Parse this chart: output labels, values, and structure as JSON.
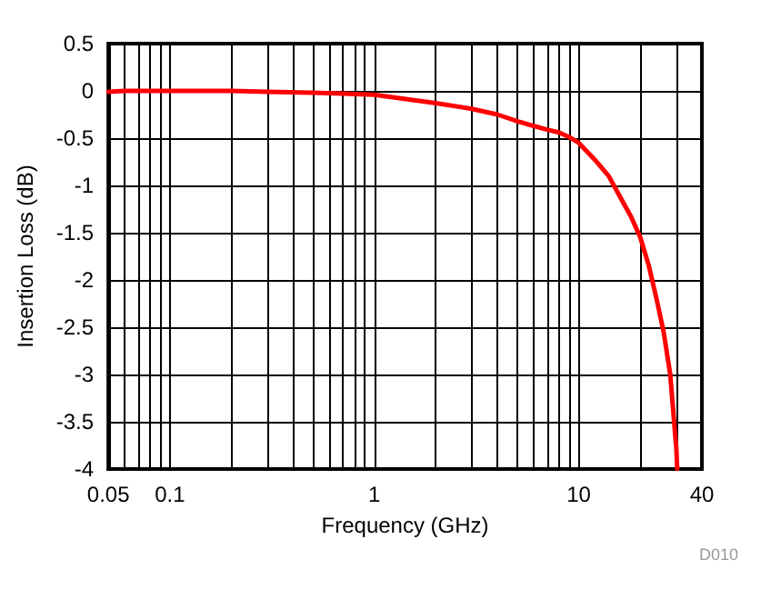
{
  "chart_data": {
    "type": "line",
    "xlabel": "Frequency (GHz)",
    "ylabel": "Insertion Loss (dB)",
    "annotations": [
      "D010"
    ],
    "log": "x",
    "grid": true,
    "marker": "none",
    "line_style": "solid",
    "xlim": [
      0.05,
      40
    ],
    "ylim": [
      -4,
      0.5
    ],
    "xticks": [
      0.05,
      {
        "value": 0.06,
        "label": null
      },
      {
        "value": 0.07,
        "label": null
      },
      {
        "value": 0.08,
        "label": null
      },
      {
        "value": 0.09,
        "label": null
      },
      0.1,
      {
        "value": 0.2,
        "label": null
      },
      {
        "value": 0.3,
        "label": null
      },
      {
        "value": 0.4,
        "label": null
      },
      {
        "value": 0.5,
        "label": null
      },
      {
        "value": 0.6,
        "label": null
      },
      {
        "value": 0.7,
        "label": null
      },
      {
        "value": 0.8,
        "label": null
      },
      {
        "value": 0.9,
        "label": null
      },
      1,
      {
        "value": 2,
        "label": null
      },
      {
        "value": 3,
        "label": null
      },
      {
        "value": 4,
        "label": null
      },
      {
        "value": 5,
        "label": null
      },
      {
        "value": 6,
        "label": null
      },
      {
        "value": 7,
        "label": null
      },
      {
        "value": 8,
        "label": null
      },
      {
        "value": 9,
        "label": null
      },
      10,
      {
        "value": 20,
        "label": null
      },
      {
        "value": 30,
        "label": null
      },
      40
    ],
    "yticks": [
      -4,
      -3.5,
      -3,
      -2.5,
      -2,
      -1.5,
      -1,
      -0.5,
      0,
      0.5
    ],
    "x": [
      0.05,
      0.06,
      0.1,
      0.2,
      0.3,
      0.5,
      0.7,
      1,
      2,
      3,
      4,
      5,
      6,
      7,
      8,
      9,
      10,
      12,
      14,
      16,
      18,
      20,
      22,
      24,
      26,
      28,
      29,
      30,
      30.3
    ],
    "series": [
      {
        "color": "#ff0000",
        "values": [
          -0.01,
          0,
          0,
          0,
          -0.01,
          -0.02,
          -0.03,
          -0.04,
          -0.13,
          -0.19,
          -0.25,
          -0.32,
          -0.37,
          -0.41,
          -0.44,
          -0.49,
          -0.55,
          -0.73,
          -0.9,
          -1.13,
          -1.33,
          -1.55,
          -1.85,
          -2.2,
          -2.55,
          -3.0,
          -3.4,
          -3.79,
          -4
        ]
      }
    ]
  }
}
